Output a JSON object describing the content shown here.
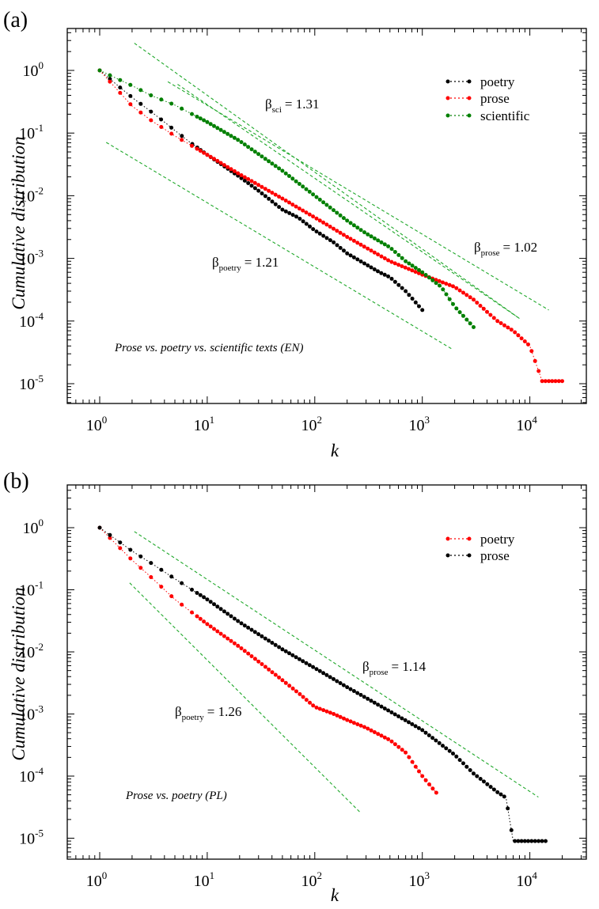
{
  "chart_data": [
    {
      "panel": "(a)",
      "type": "scatter",
      "xscale": "log",
      "yscale": "log",
      "xlim": [
        0.5,
        50000
      ],
      "ylim": [
        5e-06,
        3
      ],
      "xlabel": "k",
      "ylabel": "Cumulative distribution",
      "x_ticks": [
        "10^0",
        "10^1",
        "10^2",
        "10^3",
        "10^4"
      ],
      "y_ticks": [
        "10^-5",
        "10^-4",
        "10^-3",
        "10^-2",
        "10^-1",
        "10^0"
      ],
      "grid": false,
      "legend_position": "top-right",
      "annotation": "Prose vs. poetry vs. scientific texts (EN)",
      "series": [
        {
          "name": "poetry",
          "color": "#000000",
          "x": [
            1,
            2,
            3,
            4,
            5,
            7,
            10,
            15,
            20,
            30,
            50,
            70,
            100,
            150,
            200,
            300,
            400,
            500,
            700,
            1000
          ],
          "y": [
            1,
            0.37,
            0.22,
            0.15,
            0.11,
            0.07,
            0.045,
            0.028,
            0.02,
            0.012,
            0.006,
            0.0045,
            0.0028,
            0.0018,
            0.0012,
            0.0008,
            0.0006,
            0.0005,
            0.0003,
            0.00015
          ]
        },
        {
          "name": "prose",
          "color": "#ff0000",
          "x": [
            1,
            2,
            3,
            5,
            10,
            20,
            50,
            100,
            200,
            500,
            1000,
            2000,
            3000,
            4000,
            5000,
            7000,
            10000,
            13000,
            20000
          ],
          "y": [
            1,
            0.27,
            0.16,
            0.09,
            0.045,
            0.022,
            0.009,
            0.0045,
            0.0022,
            0.0009,
            0.00055,
            0.00035,
            0.00022,
            0.00014,
            0.0001,
            7e-05,
            4e-05,
            1.1e-05,
            1.1e-05
          ]
        },
        {
          "name": "scientific",
          "color": "#008000",
          "x": [
            1,
            2,
            3,
            5,
            10,
            20,
            50,
            100,
            200,
            300,
            500,
            700,
            1000,
            1500,
            2000,
            3000
          ],
          "y": [
            1,
            0.57,
            0.4,
            0.28,
            0.15,
            0.075,
            0.025,
            0.01,
            0.004,
            0.0025,
            0.0015,
            0.0009,
            0.0006,
            0.00035,
            0.00017,
            8e-05
          ]
        }
      ],
      "fit_lines": [
        {
          "label": "β_sci = 1.31",
          "symbol": "β",
          "subscript": "sci",
          "value": "= 1.31",
          "x": [
            2.1,
            8000
          ],
          "y": [
            2.72,
            0.00011
          ]
        },
        {
          "label": "β_prose = 1.02",
          "symbol": "β",
          "subscript": "prose",
          "value": "= 1.02",
          "x": [
            4.3,
            15000
          ],
          "y": [
            0.66,
            0.00015
          ]
        },
        {
          "label": "β_poetry = 1.21",
          "symbol": "β",
          "subscript": "poetry",
          "value": "= 1.21",
          "x": [
            1.15,
            1900
          ],
          "y": [
            0.071,
            3.55e-05
          ]
        },
        {
          "x": [
            5.3,
            8000
          ],
          "y": [
            0.6,
            0.00011
          ]
        }
      ]
    },
    {
      "panel": "(b)",
      "type": "scatter",
      "xscale": "log",
      "yscale": "log",
      "xlim": [
        0.5,
        50000
      ],
      "ylim": [
        5e-06,
        3
      ],
      "xlabel": "k",
      "ylabel": "Cumulative distribution",
      "x_ticks": [
        "10^0",
        "10^1",
        "10^2",
        "10^3",
        "10^4"
      ],
      "y_ticks": [
        "10^-5",
        "10^-4",
        "10^-3",
        "10^-2",
        "10^-1",
        "10^0"
      ],
      "grid": false,
      "legend_position": "top-right",
      "annotation": "Prose vs. poetry (PL)",
      "series": [
        {
          "name": "poetry",
          "color": "#ff0000",
          "x": [
            1,
            2,
            3,
            5,
            10,
            20,
            30,
            50,
            70,
            100,
            150,
            200,
            300,
            500,
            700,
            1000,
            1400
          ],
          "y": [
            1,
            0.3,
            0.16,
            0.07,
            0.028,
            0.012,
            0.007,
            0.0035,
            0.0022,
            0.0013,
            0.001,
            0.0008,
            0.0006,
            0.00038,
            0.00024,
            0.0001,
            5e-05
          ]
        },
        {
          "name": "prose",
          "color": "#000000",
          "x": [
            1,
            2,
            3,
            5,
            10,
            20,
            50,
            100,
            200,
            500,
            1000,
            2000,
            3000,
            5000,
            6000,
            7000,
            10000,
            14000
          ],
          "y": [
            1,
            0.42,
            0.27,
            0.15,
            0.07,
            0.03,
            0.011,
            0.0055,
            0.0027,
            0.0011,
            0.00055,
            0.00022,
            0.00011,
            5.5e-05,
            4.5e-05,
            9e-06,
            9e-06,
            9e-06
          ]
        }
      ],
      "fit_lines": [
        {
          "label": "β_prose = 1.14",
          "symbol": "β",
          "subscript": "prose",
          "value": "= 1.14",
          "x": [
            2.1,
            12000
          ],
          "y": [
            0.866,
            4.59e-05
          ]
        },
        {
          "label": "β_poetry = 1.26",
          "symbol": "β",
          "subscript": "poetry",
          "value": "= 1.26",
          "x": [
            1.9,
            270
          ],
          "y": [
            0.129,
            2.51e-05
          ]
        }
      ]
    }
  ]
}
